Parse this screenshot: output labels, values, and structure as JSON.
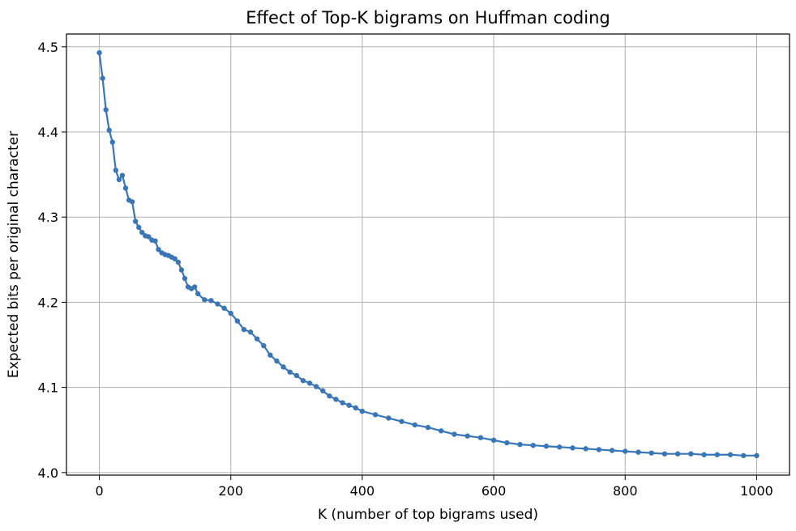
{
  "chart_data": {
    "type": "line",
    "title": "Effect of Top-K bigrams on Huffman coding",
    "xlabel": "K (number of top bigrams used)",
    "ylabel": "Expected bits per original character",
    "xlim": [
      -50,
      1050
    ],
    "ylim": [
      3.997,
      4.515
    ],
    "xticks": [
      0,
      200,
      400,
      600,
      800,
      1000
    ],
    "yticks": [
      4.0,
      4.1,
      4.2,
      4.3,
      4.4,
      4.5
    ],
    "xtick_labels": [
      "0",
      "200",
      "400",
      "600",
      "800",
      "1000"
    ],
    "ytick_labels": [
      "4.0",
      "4.1",
      "4.2",
      "4.3",
      "4.4",
      "4.5"
    ],
    "grid": true,
    "color": "#3a76b5",
    "marker": "dot",
    "x": [
      0,
      5,
      10,
      15,
      20,
      25,
      30,
      35,
      40,
      45,
      50,
      55,
      60,
      65,
      70,
      75,
      80,
      85,
      90,
      95,
      100,
      105,
      110,
      115,
      120,
      125,
      130,
      135,
      140,
      145,
      150,
      160,
      170,
      180,
      190,
      200,
      210,
      220,
      230,
      240,
      250,
      260,
      270,
      280,
      290,
      300,
      310,
      320,
      330,
      340,
      350,
      360,
      370,
      380,
      390,
      400,
      420,
      440,
      460,
      480,
      500,
      520,
      540,
      560,
      580,
      600,
      620,
      640,
      660,
      680,
      700,
      720,
      740,
      760,
      780,
      800,
      820,
      840,
      860,
      880,
      900,
      920,
      940,
      960,
      980,
      1000
    ],
    "y": [
      4.493,
      4.463,
      4.426,
      4.402,
      4.388,
      4.355,
      4.344,
      4.349,
      4.334,
      4.32,
      4.318,
      4.295,
      4.288,
      4.282,
      4.278,
      4.277,
      4.273,
      4.272,
      4.262,
      4.258,
      4.256,
      4.255,
      4.253,
      4.251,
      4.247,
      4.238,
      4.228,
      4.218,
      4.216,
      4.218,
      4.21,
      4.203,
      4.202,
      4.198,
      4.193,
      4.187,
      4.178,
      4.168,
      4.165,
      4.157,
      4.149,
      4.138,
      4.131,
      4.124,
      4.118,
      4.114,
      4.108,
      4.105,
      4.101,
      4.096,
      4.09,
      4.086,
      4.082,
      4.079,
      4.076,
      4.072,
      4.068,
      4.064,
      4.06,
      4.056,
      4.053,
      4.049,
      4.045,
      4.043,
      4.041,
      4.038,
      4.035,
      4.033,
      4.032,
      4.031,
      4.03,
      4.029,
      4.028,
      4.027,
      4.026,
      4.025,
      4.024,
      4.023,
      4.022,
      4.022,
      4.022,
      4.021,
      4.021,
      4.021,
      4.02,
      4.02
    ]
  }
}
